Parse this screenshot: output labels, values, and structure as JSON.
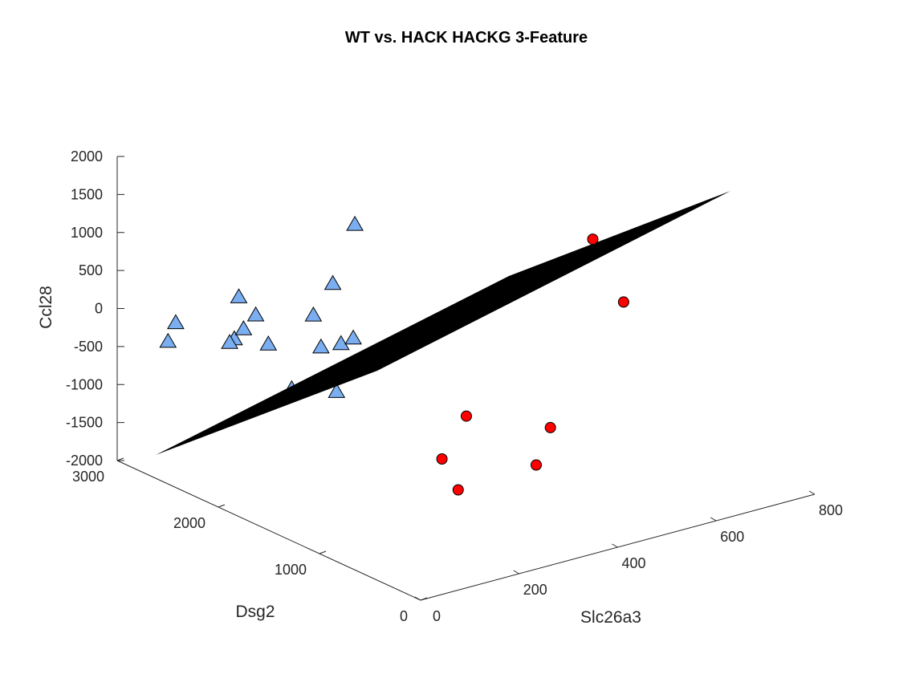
{
  "chart_data": {
    "type": "scatter3d",
    "title": "WT vs. HACK HACKG 3-Feature",
    "xlabel": "Slc26a3",
    "ylabel": "Dsg2",
    "zlabel": "Ccl28",
    "xlim": [
      0,
      800
    ],
    "ylim": [
      0,
      3000
    ],
    "zlim": [
      -2000,
      2000
    ],
    "x_ticks": [
      {
        "value": 0,
        "label": "0"
      },
      {
        "value": 200,
        "label": "200"
      },
      {
        "value": 400,
        "label": "400"
      },
      {
        "value": 600,
        "label": "600"
      },
      {
        "value": 800,
        "label": "800"
      }
    ],
    "y_ticks": [
      {
        "value": 0,
        "label": "0"
      },
      {
        "value": 1000,
        "label": "1000"
      },
      {
        "value": 2000,
        "label": "2000"
      },
      {
        "value": 3000,
        "label": "3000"
      }
    ],
    "z_ticks": [
      {
        "value": -2000,
        "label": "-2000"
      },
      {
        "value": -1500,
        "label": "-1500"
      },
      {
        "value": -1000,
        "label": "-1000"
      },
      {
        "value": -500,
        "label": "-500"
      },
      {
        "value": 0,
        "label": "0"
      },
      {
        "value": 500,
        "label": "500"
      },
      {
        "value": 1000,
        "label": "1000"
      },
      {
        "value": 1500,
        "label": "1500"
      },
      {
        "value": 2000,
        "label": "2000"
      }
    ],
    "series": [
      {
        "name": "triangles",
        "marker": "triangle",
        "color": "#7aaef0",
        "edge_color": "#000000",
        "points": [
          {
            "x": 62,
            "y": 2800,
            "z": -420
          },
          {
            "x": 88,
            "y": 2850,
            "z": -250
          },
          {
            "x": 135,
            "y": 2500,
            "z": -330
          },
          {
            "x": 140,
            "y": 2570,
            "z": -430
          },
          {
            "x": 160,
            "y": 2530,
            "z": -260
          },
          {
            "x": 200,
            "y": 2480,
            "z": -500
          },
          {
            "x": 195,
            "y": 2580,
            "z": -170
          },
          {
            "x": 175,
            "y": 2650,
            "z": 60
          },
          {
            "x": 190,
            "y": 2200,
            "z": -900
          },
          {
            "x": 240,
            "y": 2000,
            "z": -900
          },
          {
            "x": 270,
            "y": 2300,
            "z": -550
          },
          {
            "x": 290,
            "y": 2200,
            "z": -480
          },
          {
            "x": 275,
            "y": 2400,
            "z": -200
          },
          {
            "x": 315,
            "y": 2200,
            "z": -450
          },
          {
            "x": 335,
            "y": 2500,
            "z": 50
          },
          {
            "x": 390,
            "y": 2550,
            "z": 700
          }
        ]
      },
      {
        "name": "circles",
        "marker": "circle",
        "color": "#ff0000",
        "edge_color": "#000000",
        "points": [
          {
            "x": 220,
            "y": 700,
            "z": -1360
          },
          {
            "x": 300,
            "y": 1250,
            "z": -1430
          },
          {
            "x": 370,
            "y": 1350,
            "z": -1050
          },
          {
            "x": 440,
            "y": 1000,
            "z": -1600
          },
          {
            "x": 520,
            "y": 1250,
            "z": -1400
          },
          {
            "x": 720,
            "y": 1500,
            "z": -250
          },
          {
            "x": 760,
            "y": 2000,
            "z": 200
          }
        ]
      }
    ],
    "surface": {
      "name": "decision-plane",
      "color": "#000000"
    }
  }
}
